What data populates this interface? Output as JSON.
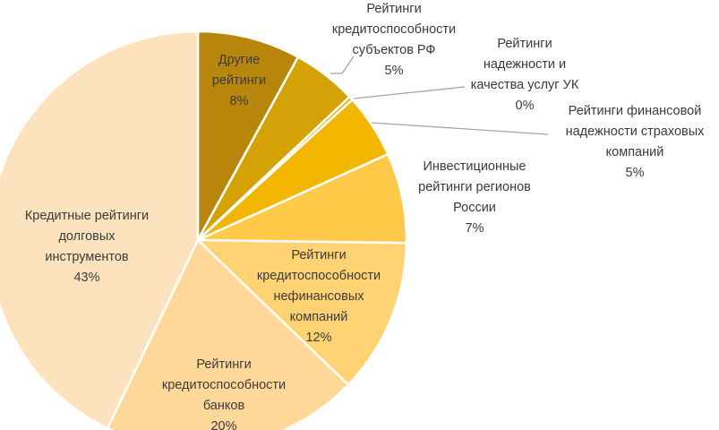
{
  "chart_data": {
    "type": "pie",
    "title": "",
    "colors": [
      "#b8860b",
      "#d4a106",
      "#e0ad00",
      "#f2b600",
      "#ffc94a",
      "#ffd374",
      "#ffd89a",
      "#fde3bd"
    ],
    "slices": [
      {
        "label_lines": [
          "Другие",
          "рейтинги"
        ],
        "percent_label": "8%",
        "value": 8
      },
      {
        "label_lines": [
          "Рейтинги",
          "кредитоспособности",
          "субъектов РФ"
        ],
        "percent_label": "5%",
        "value": 5
      },
      {
        "label_lines": [
          "Рейтинги",
          "надежности и",
          "качества услуг УК"
        ],
        "percent_label": "0%",
        "value": 0.3
      },
      {
        "label_lines": [
          "Рейтинги финансовой",
          "надежности страховых",
          "компаний"
        ],
        "percent_label": "5%",
        "value": 5
      },
      {
        "label_lines": [
          "Инвестиционные",
          "рейтинги регионов",
          "России"
        ],
        "percent_label": "7%",
        "value": 7
      },
      {
        "label_lines": [
          "Рейтинги",
          "кредитоспособности",
          "нефинансовых",
          "компаний"
        ],
        "percent_label": "12%",
        "value": 12
      },
      {
        "label_lines": [
          "Рейтинги",
          "кредитоспособности",
          "банков"
        ],
        "percent_label": "20%",
        "value": 20
      },
      {
        "label_lines": [
          "Кредитные рейтинги",
          "долговых",
          "инструментов"
        ],
        "percent_label": "43%",
        "value": 43
      }
    ]
  }
}
